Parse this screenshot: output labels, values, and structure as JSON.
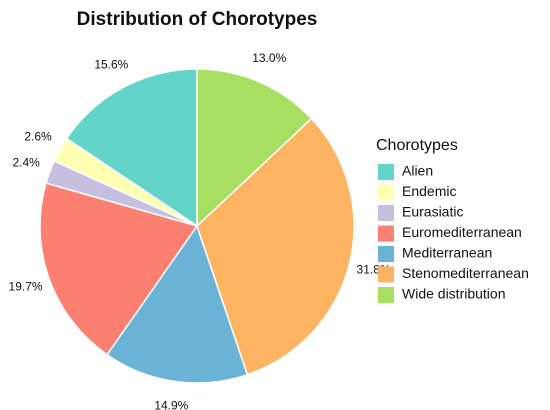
{
  "chart_data": {
    "type": "pie",
    "title": "Distribution of Chorotypes",
    "legend_title": "Chorotypes",
    "legend": "right",
    "categories": [
      "Alien",
      "Endemic",
      "Eurasiatic",
      "Euromediterranean",
      "Mediterranean",
      "Stenomediterranean",
      "Wide distribution"
    ],
    "values": [
      15.6,
      2.6,
      2.4,
      19.7,
      14.9,
      31.8,
      13.0
    ],
    "value_labels": [
      "15.6%",
      "2.6%",
      "2.4%",
      "19.7%",
      "14.9%",
      "31.8%",
      "13.0%"
    ],
    "colors": [
      "#63d4c8",
      "#ffffb3",
      "#c6bfe0",
      "#fb8072",
      "#6ab2d6",
      "#fdb462",
      "#a8de62"
    ]
  }
}
